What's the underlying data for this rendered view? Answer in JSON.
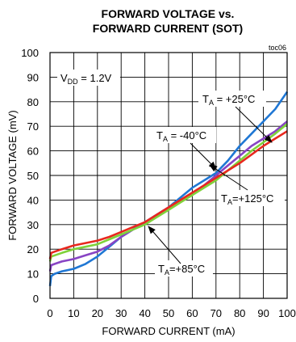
{
  "chart_data": {
    "type": "line",
    "title_lines": [
      "FORWARD VOLTAGE vs.",
      "FORWARD CURRENT (SOT)"
    ],
    "figure_id": "toc06",
    "xlabel": "FORWARD CURRENT (mA)",
    "ylabel": "FORWARD VOLTAGE (mV)",
    "xlim": [
      0,
      100
    ],
    "ylim": [
      0,
      100
    ],
    "xticks": [
      0,
      10,
      20,
      30,
      40,
      50,
      60,
      70,
      80,
      90,
      100
    ],
    "yticks": [
      0,
      10,
      20,
      30,
      40,
      50,
      60,
      70,
      80,
      90,
      100
    ],
    "grid": true,
    "condition": {
      "main": "V",
      "sub": "DD",
      "rest": " = 1.2V"
    },
    "series": [
      {
        "color": "#1f77d4",
        "x": [
          0,
          0.5,
          2,
          5,
          10,
          15,
          20,
          25,
          30,
          35,
          40,
          45,
          50,
          55,
          60,
          65,
          70,
          75,
          80,
          85,
          90,
          95,
          100
        ],
        "y": [
          5,
          9,
          10,
          11,
          12,
          14,
          17,
          21,
          25,
          28,
          31,
          34,
          37,
          41,
          45,
          48,
          51,
          56,
          62,
          67,
          72,
          77,
          84
        ]
      },
      {
        "color": "#8844c4",
        "x": [
          0,
          0.5,
          2,
          5,
          10,
          15,
          20,
          25,
          30,
          35,
          40,
          45,
          50,
          55,
          60,
          65,
          70,
          75,
          80,
          85,
          90,
          95,
          100
        ],
        "y": [
          11,
          13.5,
          14,
          15,
          16,
          17.5,
          19,
          21.5,
          25,
          28,
          31,
          34,
          37,
          40,
          43,
          46,
          50,
          54,
          58,
          62,
          65,
          68,
          72
        ]
      },
      {
        "color": "#7fd23a",
        "x": [
          0,
          0.5,
          2,
          5,
          10,
          15,
          20,
          25,
          30,
          35,
          40,
          45,
          50,
          55,
          60,
          65,
          70,
          75,
          80,
          85,
          90,
          95,
          100
        ],
        "y": [
          15,
          17,
          17.5,
          18.5,
          20,
          21,
          22,
          24,
          26,
          28,
          30,
          33,
          36,
          39,
          42,
          45,
          48,
          52,
          56,
          60,
          63.5,
          67,
          71
        ]
      },
      {
        "color": "#e8281e",
        "x": [
          0,
          0.5,
          2,
          5,
          10,
          15,
          20,
          25,
          30,
          35,
          40,
          45,
          50,
          55,
          60,
          65,
          70,
          75,
          80,
          85,
          90,
          95,
          100
        ],
        "y": [
          16,
          18.5,
          19,
          20,
          21.5,
          22.5,
          23.5,
          25,
          27,
          29,
          31,
          34,
          37,
          40,
          43,
          46,
          49,
          52,
          55,
          58.5,
          62,
          65,
          68
        ]
      }
    ],
    "annotations": [
      {
        "main": "T",
        "sub": "A",
        "rest": " = +25°C"
      },
      {
        "main": "T",
        "sub": "A",
        "rest": " = -40°C"
      },
      {
        "main": "T",
        "sub": "A",
        "rest": "=+125°C"
      },
      {
        "main": "T",
        "sub": "A",
        "rest": "=+85°C"
      }
    ]
  }
}
